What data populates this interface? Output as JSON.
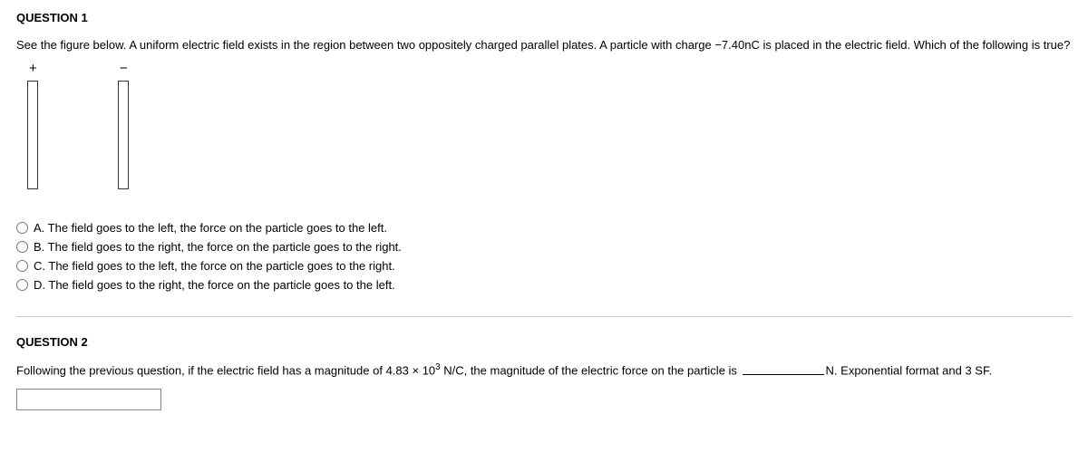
{
  "q1": {
    "title": "QUESTION 1",
    "text_pre": "See the figure below. A uniform electric field exists in the region between two oppositely charged parallel plates. A particle with charge ",
    "charge": "−7.40nC",
    "text_post": " is placed in the electric field. Which of the following is true?",
    "sign_plus": "+",
    "sign_minus": "−",
    "options": {
      "a": "A. The field goes to the left, the force on the particle goes to the left.",
      "b": "B. The field goes to the right, the force on the particle goes to the right.",
      "c": "C. The field goes to the left, the force on the particle goes to the right.",
      "d": "D. The field goes to the right, the force on the particle goes to the left."
    }
  },
  "q2": {
    "title": "QUESTION 2",
    "text_pre": "Following the previous question, if the electric field has a magnitude of 4.83 ",
    "times": "×",
    "mantissa": " 10",
    "exponent": "3",
    "unit": " N/C, the magnitude of the electric force on the particle is ",
    "text_post": "N. Exponential format and 3 SF.",
    "input_value": ""
  }
}
